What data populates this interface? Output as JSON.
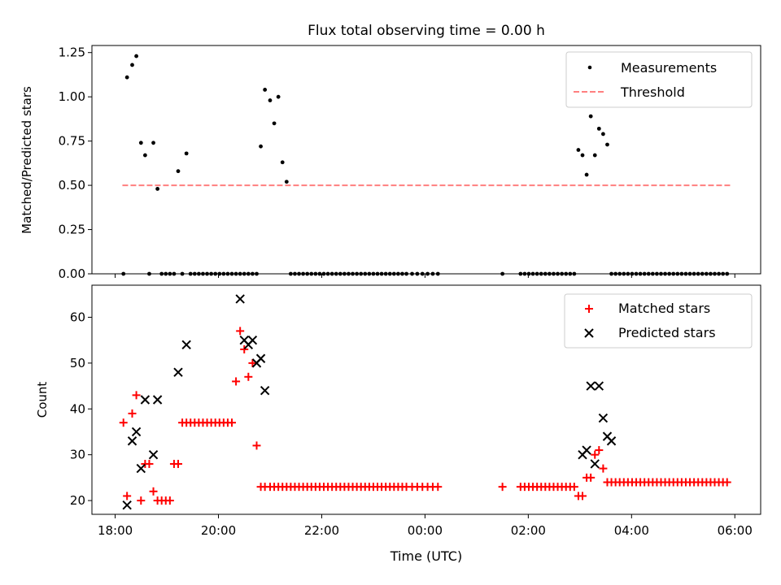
{
  "title": "Flux total observing time = 0.00 h",
  "xlabel": "Time (UTC)",
  "x_ticks": [
    {
      "t": 0,
      "label": "18:00"
    },
    {
      "t": 2,
      "label": "20:00"
    },
    {
      "t": 4,
      "label": "22:00"
    },
    {
      "t": 6,
      "label": "00:00"
    },
    {
      "t": 8,
      "label": "02:00"
    },
    {
      "t": 10,
      "label": "04:00"
    },
    {
      "t": 12,
      "label": "06:00"
    }
  ],
  "chart_data": [
    {
      "type": "scatter",
      "title": "Flux total observing time = 0.00 h",
      "xlabel": "",
      "ylabel": "Matched/Predicted stars",
      "x_unit": "hours since 18:00 UTC",
      "xlim": [
        -0.45,
        12.5
      ],
      "ylim": [
        0,
        1.29
      ],
      "yticks": [
        "0.00",
        "0.25",
        "0.50",
        "0.75",
        "1.00",
        "1.25"
      ],
      "ytick_values": [
        0,
        0.25,
        0.5,
        0.75,
        1.0,
        1.25
      ],
      "legend": {
        "position": "top-right",
        "entries": [
          "Measurements",
          "Threshold"
        ]
      },
      "threshold": {
        "name": "Threshold",
        "value": 0.5,
        "x_start": 0.14,
        "x_end": 11.94,
        "color": "#ff7f7f"
      },
      "series": [
        {
          "name": "Measurements",
          "color": "#000000",
          "x": [
            0.16,
            0.23,
            0.33,
            0.41,
            0.5,
            0.58,
            0.66,
            0.74,
            0.82,
            0.9,
            0.98,
            1.06,
            1.14,
            1.22,
            1.3,
            1.38,
            1.46,
            1.54,
            1.62,
            1.7,
            1.78,
            1.86,
            1.94,
            2.02,
            2.1,
            2.18,
            2.26,
            2.34,
            2.42,
            2.5,
            2.58,
            2.66,
            2.74,
            2.82,
            2.9,
            3.0,
            3.08,
            3.16,
            3.24,
            3.32,
            3.4,
            3.48,
            3.56,
            3.64,
            3.72,
            3.8,
            3.88,
            3.96,
            4.04,
            4.12,
            4.2,
            4.28,
            4.36,
            4.44,
            4.52,
            4.6,
            4.68,
            4.76,
            4.84,
            4.92,
            5.0,
            5.08,
            5.16,
            5.24,
            5.32,
            5.4,
            5.48,
            5.56,
            5.64,
            5.75,
            5.85,
            5.95,
            6.05,
            6.15,
            6.25,
            7.5,
            7.85,
            7.93,
            8.01,
            8.09,
            8.17,
            8.25,
            8.33,
            8.41,
            8.49,
            8.57,
            8.65,
            8.73,
            8.81,
            8.89,
            8.97,
            9.05,
            9.13,
            9.21,
            9.29,
            9.37,
            9.45,
            9.53,
            9.61,
            9.69,
            9.77,
            9.85,
            9.93,
            10.01,
            10.09,
            10.17,
            10.25,
            10.33,
            10.41,
            10.49,
            10.57,
            10.65,
            10.73,
            10.81,
            10.89,
            10.97,
            11.05,
            11.13,
            11.21,
            11.29,
            11.37,
            11.45,
            11.53,
            11.61,
            11.69,
            11.77,
            11.85
          ],
          "y": [
            0.0,
            1.11,
            1.18,
            1.23,
            0.74,
            0.67,
            0.0,
            0.74,
            0.48,
            0.0,
            0.0,
            0.0,
            0.0,
            0.58,
            0.0,
            0.68,
            0.0,
            0.0,
            0.0,
            0.0,
            0.0,
            0.0,
            0.0,
            0.0,
            0.0,
            0.0,
            0.0,
            0.0,
            0.0,
            0.0,
            0.0,
            0.0,
            0.0,
            0.72,
            1.04,
            0.98,
            0.85,
            1.0,
            0.63,
            0.52,
            0.0,
            0.0,
            0.0,
            0.0,
            0.0,
            0.0,
            0.0,
            0.0,
            0.0,
            0.0,
            0.0,
            0.0,
            0.0,
            0.0,
            0.0,
            0.0,
            0.0,
            0.0,
            0.0,
            0.0,
            0.0,
            0.0,
            0.0,
            0.0,
            0.0,
            0.0,
            0.0,
            0.0,
            0.0,
            0.0,
            0.0,
            0.0,
            0.0,
            0.0,
            0.0,
            0.0,
            0.0,
            0.0,
            0.0,
            0.0,
            0.0,
            0.0,
            0.0,
            0.0,
            0.0,
            0.0,
            0.0,
            0.0,
            0.0,
            0.0,
            0.7,
            0.67,
            0.56,
            0.89,
            0.67,
            0.82,
            0.79,
            0.73,
            0.0,
            0.0,
            0.0,
            0.0,
            0.0,
            0.0,
            0.0,
            0.0,
            0.0,
            0.0,
            0.0,
            0.0,
            0.0,
            0.0,
            0.0,
            0.0,
            0.0,
            0.0,
            0.0,
            0.0,
            0.0,
            0.0,
            0.0,
            0.0,
            0.0,
            0.0,
            0.0,
            0.0,
            0.0
          ]
        }
      ]
    },
    {
      "type": "scatter",
      "title": "",
      "xlabel": "Time (UTC)",
      "ylabel": "Count",
      "x_unit": "hours since 18:00 UTC",
      "xlim": [
        -0.45,
        12.5
      ],
      "ylim": [
        17,
        67
      ],
      "yticks": [
        "20",
        "30",
        "40",
        "50",
        "60"
      ],
      "ytick_values": [
        20,
        30,
        40,
        50,
        60
      ],
      "legend": {
        "position": "top-right",
        "entries": [
          "Matched stars",
          "Predicted stars"
        ]
      },
      "series": [
        {
          "name": "Matched stars",
          "marker": "plus",
          "color": "#ff0000",
          "x": [
            0.16,
            0.23,
            0.33,
            0.41,
            0.5,
            0.58,
            0.66,
            0.74,
            0.82,
            0.9,
            0.98,
            1.06,
            1.14,
            1.22,
            1.3,
            1.38,
            1.46,
            1.54,
            1.62,
            1.7,
            1.78,
            1.86,
            1.94,
            2.02,
            2.1,
            2.18,
            2.26,
            2.34,
            2.42,
            2.5,
            2.58,
            2.66,
            2.74,
            2.82,
            2.9,
            3.0,
            3.08,
            3.16,
            3.24,
            3.32,
            3.4,
            3.48,
            3.56,
            3.64,
            3.72,
            3.8,
            3.88,
            3.96,
            4.04,
            4.12,
            4.2,
            4.28,
            4.36,
            4.44,
            4.52,
            4.6,
            4.68,
            4.76,
            4.84,
            4.92,
            5.0,
            5.08,
            5.16,
            5.24,
            5.32,
            5.4,
            5.48,
            5.56,
            5.64,
            5.75,
            5.85,
            5.95,
            6.05,
            6.15,
            6.25,
            7.5,
            7.85,
            7.93,
            8.01,
            8.09,
            8.17,
            8.25,
            8.33,
            8.41,
            8.49,
            8.57,
            8.65,
            8.73,
            8.81,
            8.89,
            8.97,
            9.05,
            9.13,
            9.21,
            9.29,
            9.37,
            9.45,
            9.53,
            9.61,
            9.69,
            9.77,
            9.85,
            9.93,
            10.01,
            10.09,
            10.17,
            10.25,
            10.33,
            10.41,
            10.49,
            10.57,
            10.65,
            10.73,
            10.81,
            10.89,
            10.97,
            11.05,
            11.13,
            11.21,
            11.29,
            11.37,
            11.45,
            11.53,
            11.61,
            11.69,
            11.77,
            11.85
          ],
          "y": [
            37,
            21,
            39,
            43,
            20,
            28,
            28,
            22,
            20,
            20,
            20,
            20,
            28,
            28,
            37,
            37,
            37,
            37,
            37,
            37,
            37,
            37,
            37,
            37,
            37,
            37,
            37,
            46,
            57,
            53,
            47,
            50,
            32,
            23,
            23,
            23,
            23,
            23,
            23,
            23,
            23,
            23,
            23,
            23,
            23,
            23,
            23,
            23,
            23,
            23,
            23,
            23,
            23,
            23,
            23,
            23,
            23,
            23,
            23,
            23,
            23,
            23,
            23,
            23,
            23,
            23,
            23,
            23,
            23,
            23,
            23,
            23,
            23,
            23,
            23,
            23,
            23,
            23,
            23,
            23,
            23,
            23,
            23,
            23,
            23,
            23,
            23,
            23,
            23,
            23,
            21,
            21,
            25,
            25,
            30,
            31,
            27,
            24,
            24,
            24,
            24,
            24,
            24,
            24,
            24,
            24,
            24,
            24,
            24,
            24,
            24,
            24,
            24,
            24,
            24,
            24,
            24,
            24,
            24,
            24,
            24,
            24,
            24,
            24,
            24,
            24,
            24
          ]
        },
        {
          "name": "Predicted stars",
          "marker": "x",
          "color": "#000000",
          "x": [
            0.23,
            0.33,
            0.41,
            0.5,
            0.58,
            0.74,
            0.82,
            1.22,
            1.38,
            2.42,
            2.5,
            2.58,
            2.66,
            2.74,
            2.82,
            2.9,
            9.05,
            9.13,
            9.21,
            9.29,
            9.37,
            9.45,
            9.53,
            9.61
          ],
          "y": [
            19,
            33,
            35,
            27,
            42,
            30,
            42,
            48,
            54,
            64,
            55,
            54,
            55,
            50,
            51,
            44,
            30,
            31,
            45,
            28,
            45,
            38,
            34,
            33
          ]
        }
      ]
    }
  ]
}
